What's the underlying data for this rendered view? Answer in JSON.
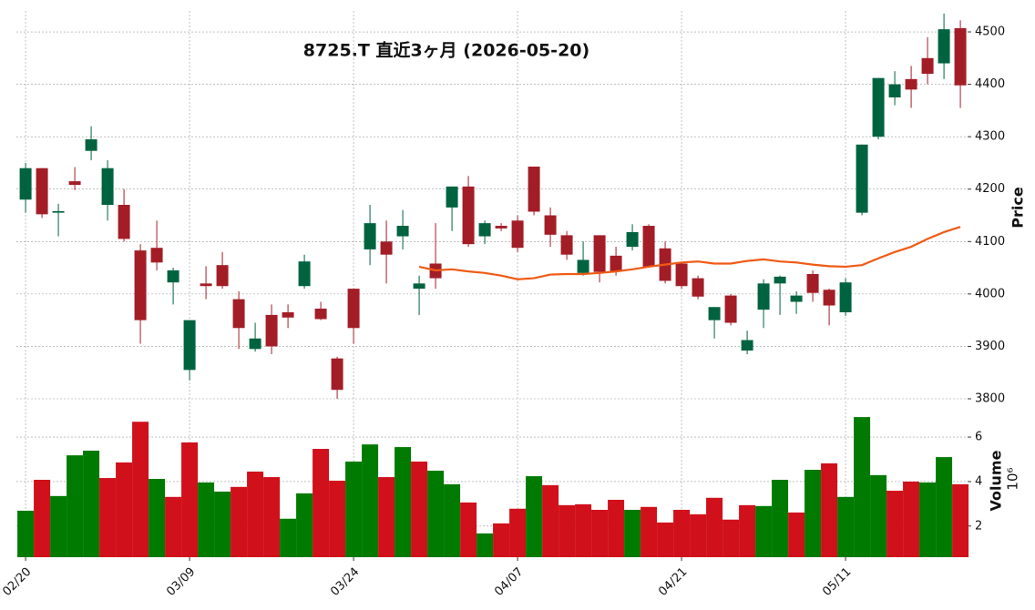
{
  "chart_data": {
    "type": "candlestick",
    "title": "8725.T  直近3ヶ月 (2026-05-20)",
    "categories": [
      "02/20",
      null,
      null,
      null,
      null,
      null,
      null,
      null,
      null,
      null,
      "03/09",
      null,
      null,
      null,
      null,
      null,
      null,
      null,
      null,
      null,
      "03/24",
      null,
      null,
      null,
      null,
      null,
      null,
      null,
      null,
      null,
      "04/07",
      null,
      null,
      null,
      null,
      null,
      null,
      null,
      null,
      null,
      "04/21",
      null,
      null,
      null,
      null,
      null,
      null,
      null,
      null,
      null,
      "05/11",
      null,
      null,
      null,
      null,
      null,
      null,
      null
    ],
    "open": [
      4180,
      4240,
      4155,
      4215,
      4273,
      4170,
      4170,
      4083,
      4088,
      4022,
      3855,
      4020,
      4055,
      3990,
      3895,
      3960,
      3965,
      4015,
      3972,
      3877,
      4010,
      4085,
      4100,
      4110,
      4010,
      4058,
      4165,
      4205,
      4110,
      4130,
      4140,
      4243,
      4150,
      4112,
      4040,
      4112,
      4073,
      4090,
      4130,
      4087,
      4058,
      4030,
      3950,
      3997,
      3892,
      3970,
      4020,
      3985,
      4038,
      4008,
      3965,
      4155,
      4300,
      4375,
      4410,
      4450,
      4440,
      4507
    ],
    "high": [
      4250,
      4240,
      4172,
      4242,
      4320,
      4255,
      4200,
      4095,
      4140,
      4050,
      3950,
      4053,
      4080,
      4005,
      3945,
      3980,
      3980,
      4075,
      3985,
      3880,
      4010,
      4170,
      4140,
      4160,
      4035,
      4135,
      4205,
      4225,
      4140,
      4135,
      4150,
      4243,
      4165,
      4120,
      4100,
      4112,
      4090,
      4133,
      4133,
      4100,
      4060,
      4035,
      3975,
      4000,
      3930,
      4028,
      4035,
      4005,
      4045,
      4010,
      4030,
      4285,
      4412,
      4425,
      4435,
      4490,
      4535,
      4522
    ],
    "low": [
      4155,
      4145,
      4110,
      4198,
      4255,
      4140,
      4100,
      3905,
      4045,
      3980,
      3835,
      3990,
      4010,
      3895,
      3890,
      3885,
      3935,
      4010,
      3950,
      3800,
      3905,
      4055,
      4020,
      4085,
      3960,
      4010,
      4120,
      4090,
      4095,
      4120,
      4080,
      4150,
      4090,
      4065,
      4035,
      4022,
      4035,
      4083,
      4050,
      4020,
      4010,
      3990,
      3915,
      3940,
      3885,
      3935,
      3960,
      3962,
      3985,
      3940,
      3958,
      4150,
      4295,
      4360,
      4355,
      4400,
      4410,
      4355
    ],
    "close": [
      4240,
      4152,
      4158,
      4208,
      4295,
      4240,
      4105,
      3950,
      4060,
      4045,
      3950,
      4015,
      4015,
      3935,
      3915,
      3900,
      3955,
      4062,
      3952,
      3817,
      3935,
      4135,
      4075,
      4130,
      4020,
      4030,
      4205,
      4095,
      4135,
      4125,
      4088,
      4157,
      4113,
      4075,
      4065,
      4042,
      4043,
      4118,
      4052,
      4025,
      4015,
      3995,
      3975,
      3945,
      3912,
      4020,
      4033,
      3997,
      4002,
      3978,
      4022,
      4285,
      4412,
      4400,
      4390,
      4420,
      4505,
      4398
    ],
    "up_color": "#006340",
    "down_color": "#a31d27",
    "ma": {
      "color": "#f05a14",
      "values": [
        null,
        null,
        null,
        null,
        null,
        null,
        null,
        null,
        null,
        null,
        null,
        null,
        null,
        null,
        null,
        null,
        null,
        null,
        null,
        null,
        null,
        null,
        null,
        null,
        4052,
        4045,
        4047,
        4043,
        4040,
        4035,
        4028,
        4030,
        4037,
        4038,
        4038,
        4040,
        4043,
        4047,
        4052,
        4056,
        4060,
        4062,
        4058,
        4058,
        4063,
        4066,
        4062,
        4060,
        4056,
        4053,
        4052,
        4055,
        4068,
        4080,
        4090,
        4105,
        4118,
        4128
      ]
    },
    "ylabel": "Price",
    "ylim": [
      3800,
      4540
    ],
    "yticks": [
      3800,
      3900,
      4000,
      4100,
      4200,
      4300,
      4400,
      4500
    ],
    "grid": true,
    "volume": {
      "ylabel": "Volume",
      "offset_label": "10⁶",
      "ylim": [
        0.6,
        7.6
      ],
      "yticks": [
        2,
        4,
        6
      ],
      "values": [
        2.69,
        4.08,
        3.35,
        5.18,
        5.39,
        4.16,
        4.86,
        6.69,
        4.12,
        3.31,
        5.76,
        3.96,
        3.55,
        3.76,
        4.45,
        4.2,
        2.33,
        3.47,
        5.47,
        4.04,
        4.9,
        5.67,
        4.2,
        5.55,
        4.9,
        4.49,
        3.88,
        3.06,
        1.67,
        2.12,
        2.78,
        4.24,
        3.84,
        2.94,
        2.98,
        2.73,
        3.18,
        2.73,
        2.86,
        2.16,
        2.73,
        2.53,
        3.27,
        2.29,
        2.94,
        2.9,
        4.08,
        2.61,
        4.53,
        4.82,
        3.31,
        6.9,
        4.29,
        3.59,
        4.0,
        3.96,
        5.1,
        3.88
      ],
      "colors": [
        "#007a00",
        "#d0101a",
        "#007a00",
        "#007a00",
        "#007a00",
        "#d0101a",
        "#d0101a",
        "#d0101a",
        "#007a00",
        "#d0101a",
        "#d0101a",
        "#007a00",
        "#007a00",
        "#d0101a",
        "#d0101a",
        "#d0101a",
        "#007a00",
        "#007a00",
        "#d0101a",
        "#d0101a",
        "#007a00",
        "#007a00",
        "#d0101a",
        "#007a00",
        "#d0101a",
        "#007a00",
        "#007a00",
        "#d0101a",
        "#007a00",
        "#d0101a",
        "#d0101a",
        "#007a00",
        "#d0101a",
        "#d0101a",
        "#d0101a",
        "#d0101a",
        "#d0101a",
        "#007a00",
        "#d0101a",
        "#d0101a",
        "#d0101a",
        "#d0101a",
        "#d0101a",
        "#d0101a",
        "#d0101a",
        "#007a00",
        "#007a00",
        "#d0101a",
        "#007a00",
        "#d0101a",
        "#007a00",
        "#007a00",
        "#007a00",
        "#d0101a",
        "#d0101a",
        "#007a00",
        "#007a00",
        "#d0101a"
      ]
    }
  }
}
